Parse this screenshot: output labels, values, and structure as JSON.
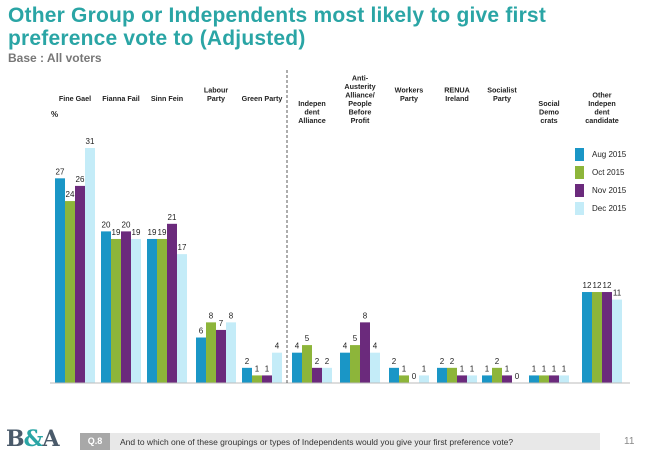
{
  "title": "Other Group or Independents most likely to give first preference vote to (Adjusted)",
  "base": "Base : All voters",
  "unit": "%",
  "chart_data": {
    "type": "bar",
    "title": "Other Group or Independents most likely to give first preference vote to (Adjusted)",
    "ylabel": "%",
    "ylim": [
      0,
      31
    ],
    "legend_position": "right",
    "categories": [
      [
        "Fine Gael"
      ],
      [
        "Fianna Fail"
      ],
      [
        "Sinn Fein"
      ],
      [
        "Labour",
        "Party"
      ],
      [
        "Green Party"
      ],
      [
        "Indepen",
        "dent",
        "Alliance"
      ],
      [
        "Anti-",
        "Austerity",
        "Alliance/",
        "People",
        "Before",
        "Profit"
      ],
      [
        "Workers",
        "Party"
      ],
      [
        "RENUA",
        "Ireland"
      ],
      [
        "Socialist",
        "Party"
      ],
      [
        "Social",
        "Demo",
        "crats"
      ],
      [
        "Other",
        "Indepen",
        "dent",
        "candidate"
      ]
    ],
    "series": [
      {
        "name": "Aug 2015",
        "color": "#1a96c6",
        "values": [
          27,
          20,
          19,
          6,
          2,
          4,
          4,
          2,
          2,
          1,
          1,
          12
        ]
      },
      {
        "name": "Oct 2015",
        "color": "#8db53a",
        "values": [
          24,
          19,
          19,
          8,
          1,
          5,
          5,
          1,
          2,
          2,
          1,
          12
        ]
      },
      {
        "name": "Nov 2015",
        "color": "#6b2a7c",
        "values": [
          26,
          20,
          21,
          7,
          1,
          2,
          8,
          0,
          1,
          1,
          1,
          12
        ]
      },
      {
        "name": "Dec 2015",
        "color": "#c4ecf8",
        "values": [
          31,
          19,
          17,
          8,
          4,
          2,
          4,
          1,
          1,
          0,
          1,
          11
        ]
      }
    ]
  },
  "footer": {
    "logo_main": "B",
    "logo_amp": "&",
    "logo_end": "A",
    "question_number": "Q.8",
    "question_text": "And to which one of these groupings or types of Independents would you give your first preference vote?",
    "page_number": "11"
  }
}
